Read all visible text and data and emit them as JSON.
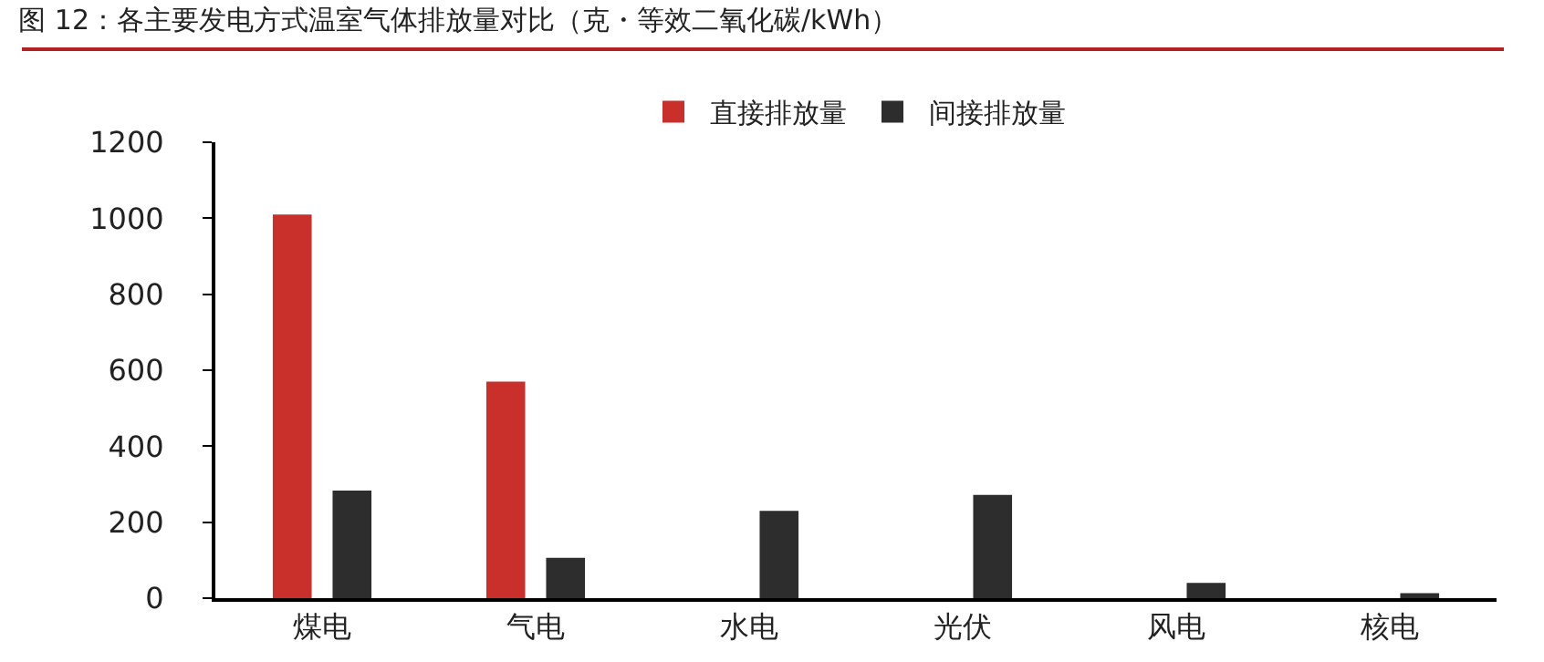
{
  "chart_data": {
    "type": "bar",
    "title": "图 12：各主要发电方式温室气体排放量对比（克・等效二氧化碳/kWh）",
    "categories": [
      "煤电",
      "气电",
      "水电",
      "光伏",
      "风电",
      "核电"
    ],
    "series": [
      {
        "name": "直接排放量",
        "color": "#c9302c",
        "values": [
          1010,
          570,
          null,
          null,
          null,
          null
        ]
      },
      {
        "name": "间接排放量",
        "color": "#2d2d2d",
        "values": [
          283,
          106,
          230,
          272,
          40,
          13
        ]
      }
    ],
    "ylim": [
      0,
      1200
    ],
    "yticks": [
      0,
      200,
      400,
      600,
      800,
      1000,
      1200
    ],
    "grid": false,
    "legend": "top"
  }
}
